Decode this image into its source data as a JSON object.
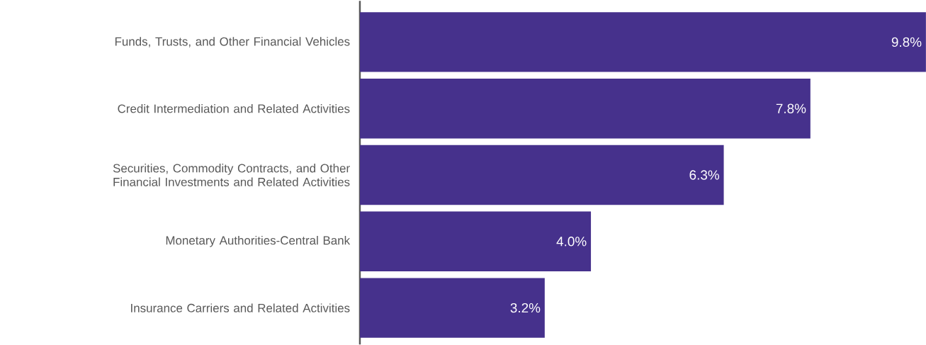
{
  "chart_data": {
    "type": "bar",
    "orientation": "horizontal",
    "categories": [
      "Funds, Trusts, and Other Financial Vehicles",
      "Credit Intermediation and Related Activities",
      "Securities, Commodity Contracts, and Other Financial Investments and Related Activities",
      "Monetary Authorities-Central Bank",
      "Insurance Carriers and Related Activities"
    ],
    "values": [
      9.8,
      7.8,
      6.3,
      4.0,
      3.2
    ],
    "value_labels": [
      "9.8%",
      "7.8%",
      "6.3%",
      "4.0%",
      "3.2%"
    ],
    "color": "#46318c"
  }
}
